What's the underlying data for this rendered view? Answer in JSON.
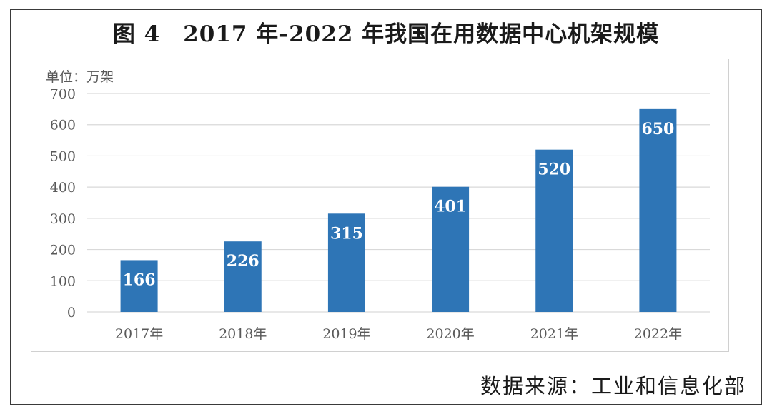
{
  "title": "图 4　2017 年-2022 年我国在用数据中心机架规模",
  "source": "数据来源：工业和信息化部",
  "colors": {
    "bar": "#2e75b6",
    "grid": "#d9d9d9",
    "axis_text": "#595959"
  },
  "chart_data": {
    "type": "bar",
    "title": "图 4　2017 年-2022 年我国在用数据中心机架规模",
    "unit_label": "单位：万架",
    "xlabel": "",
    "ylabel": "",
    "categories": [
      "2017年",
      "2018年",
      "2019年",
      "2020年",
      "2021年",
      "2022年"
    ],
    "values": [
      166,
      226,
      315,
      401,
      520,
      650
    ],
    "data_labels": [
      "166",
      "226",
      "315",
      "401",
      "520",
      "650"
    ],
    "ylim": [
      0,
      700
    ],
    "yticks": [
      0,
      100,
      200,
      300,
      400,
      500,
      600,
      700
    ],
    "ytick_labels": [
      "0",
      "100",
      "200",
      "300",
      "400",
      "500",
      "600",
      "700"
    ],
    "grid": true,
    "legend": "none"
  }
}
